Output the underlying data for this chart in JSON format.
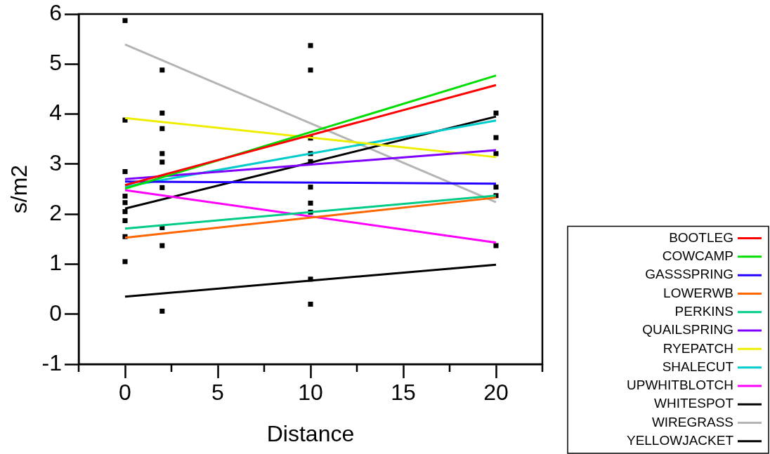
{
  "chart_data": {
    "type": "scatter",
    "xlabel": "Distance",
    "ylabel": "s/m2",
    "xlim": [
      -2.5,
      22.5
    ],
    "xticks": [
      {
        "value": -2.5,
        "label": null
      },
      0,
      {
        "value": 2.5,
        "label": null
      },
      5,
      {
        "value": 7.5,
        "label": null
      },
      10,
      {
        "value": 12.5,
        "label": null
      },
      15,
      {
        "value": 17.5,
        "label": null
      },
      20,
      {
        "value": 22.5,
        "label": null
      }
    ],
    "ylim": [
      -1,
      6
    ],
    "yticks": [
      -1,
      0,
      1,
      2,
      3,
      4,
      5,
      6
    ],
    "legend": "bottom right",
    "series": [
      {
        "color": "#000000",
        "marker": "square",
        "x": [
          0,
          0,
          0,
          0,
          0,
          0,
          0,
          0,
          0,
          2,
          2,
          2,
          2,
          2,
          2,
          2,
          2,
          2,
          10,
          10,
          10,
          10,
          10,
          10,
          10,
          10,
          10,
          10,
          20,
          20,
          20,
          20,
          20,
          20
        ],
        "values": [
          5.87,
          3.88,
          2.85,
          2.36,
          2.23,
          2.05,
          1.87,
          1.55,
          1.05,
          4.88,
          4.02,
          3.71,
          3.21,
          3.04,
          2.53,
          1.73,
          1.37,
          0.06,
          5.37,
          4.88,
          3.52,
          3.21,
          3.05,
          2.54,
          2.22,
          2.04,
          0.7,
          0.2,
          4.02,
          3.53,
          3.21,
          2.54,
          2.37,
          1.37
        ]
      },
      {
        "name": "BOOTLEG",
        "type": "line",
        "color": "#ff0000",
        "x": [
          0,
          20
        ],
        "values": [
          2.58,
          4.58
        ]
      },
      {
        "name": "COWCAMP",
        "type": "line",
        "color": "#00dd00",
        "x": [
          0,
          20
        ],
        "values": [
          2.51,
          4.77
        ]
      },
      {
        "name": "GASSSPRING",
        "type": "line",
        "color": "#2200ff",
        "x": [
          0,
          20
        ],
        "values": [
          2.65,
          2.61
        ]
      },
      {
        "name": "LOWERWB",
        "type": "line",
        "color": "#ff6600",
        "x": [
          0,
          20
        ],
        "values": [
          1.53,
          2.33
        ]
      },
      {
        "name": "PERKINS",
        "type": "line",
        "color": "#00cc88",
        "x": [
          0,
          20
        ],
        "values": [
          1.71,
          2.37
        ]
      },
      {
        "name": "QUAILSPRING",
        "type": "line",
        "color": "#7f00ff",
        "x": [
          0,
          20
        ],
        "values": [
          2.7,
          3.28
        ]
      },
      {
        "name": "RYEPATCH",
        "type": "line",
        "color": "#eeee00",
        "x": [
          0,
          20
        ],
        "values": [
          3.92,
          3.14
        ]
      },
      {
        "name": "SHALECUT",
        "type": "line",
        "color": "#00cccc",
        "x": [
          0,
          20
        ],
        "values": [
          2.55,
          3.87
        ]
      },
      {
        "name": "UPWHITBLOTCH",
        "type": "line",
        "color": "#ff00ff",
        "x": [
          0,
          20
        ],
        "values": [
          2.48,
          1.43
        ]
      },
      {
        "name": "WHITESPOT",
        "type": "line",
        "color": "#000000",
        "x": [
          0,
          20
        ],
        "values": [
          2.11,
          3.95
        ]
      },
      {
        "name": "WIREGRASS",
        "type": "line",
        "color": "#b4b4b4",
        "x": [
          0,
          20
        ],
        "values": [
          5.39,
          2.24
        ]
      },
      {
        "name": "YELLOWJACKET",
        "type": "line",
        "color": "#000000",
        "x": [
          0,
          20
        ],
        "values": [
          0.35,
          0.99
        ]
      }
    ]
  }
}
